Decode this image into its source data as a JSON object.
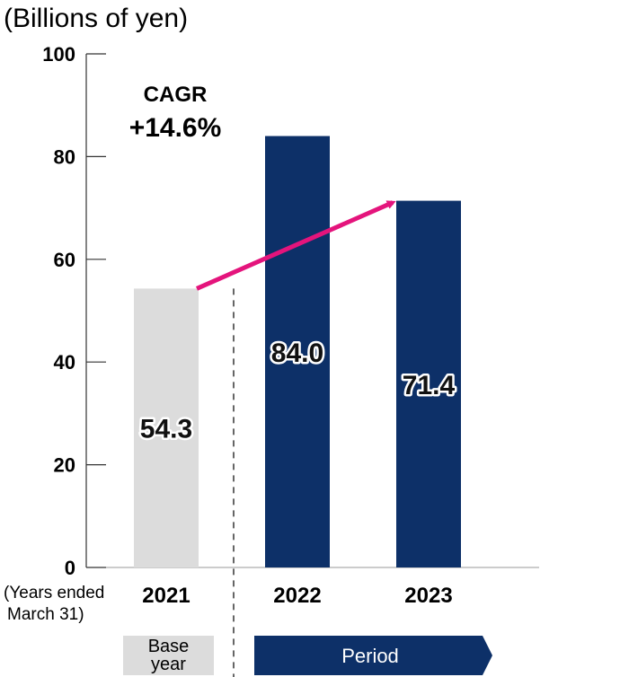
{
  "chart_data": {
    "type": "bar",
    "unit_label": "(Billions of yen)",
    "categories": [
      "2021",
      "2022",
      "2023"
    ],
    "values": [
      54.3,
      84.0,
      71.4
    ],
    "value_labels": [
      "54.3",
      "84.0",
      "71.4"
    ],
    "bar_colors": [
      "#dcdcdc",
      "#0d3068",
      "#0d3068"
    ],
    "ylim": [
      0,
      100
    ],
    "yticks": [
      "0",
      "20",
      "40",
      "60",
      "80",
      "100"
    ],
    "xaxis_note": [
      "(Years ended",
      "March 31)"
    ],
    "cagr": {
      "label": "CAGR",
      "value": "+14.6%"
    },
    "arrow_color": "#e4147c",
    "base_label": [
      "Base",
      "year"
    ],
    "period_label": "Period",
    "colors": {
      "base_bar": "#dcdcdc",
      "period_bar": "#0d3068",
      "base_box": "#dcdcdc",
      "period_box": "#0d3068"
    }
  }
}
